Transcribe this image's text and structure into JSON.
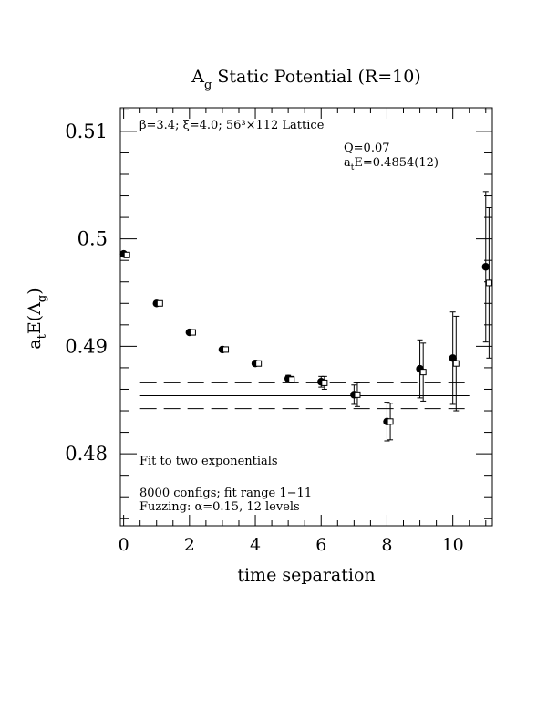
{
  "chart_data": {
    "type": "scatter",
    "title_main": "A",
    "title_sub": "g",
    "title_rest": " Static Potential (R=10)",
    "xlabel": "time separation",
    "ylabel_main": "a",
    "ylabel_sub1": "t",
    "ylabel_mid": "E(A",
    "ylabel_sub2": "g",
    "ylabel_end": ")",
    "xlim": [
      -0.1,
      11.2
    ],
    "ylim": [
      0.4733,
      0.5122
    ],
    "x_ticks": [
      0,
      2,
      4,
      6,
      8,
      10
    ],
    "x_tick_labels": [
      "0",
      "2",
      "4",
      "6",
      "8",
      "10"
    ],
    "y_ticks": [
      0.48,
      0.49,
      0.5,
      0.51
    ],
    "y_tick_labels": [
      "0.48",
      "0.49",
      "0.5",
      "0.51"
    ],
    "x_minor_step": 0.5,
    "y_minor_step": 0.002,
    "annotations": {
      "lattice": "β=3.4; ξ=4.0; 56³×112 Lattice",
      "q_value": "Q=0.07",
      "energy_main": "a",
      "energy_sub": "t",
      "energy_rest": "E=0.4854(12)",
      "fit_title": "Fit to two exponentials",
      "configs": "8000 configs; fit range 1−11",
      "fuzzing": "Fuzzing: α=0.15, 12 levels"
    },
    "fit": {
      "value": 0.4854,
      "upper": 0.4866,
      "lower": 0.4842,
      "x_start": 0.5,
      "x_end": 10.5
    },
    "series": [
      {
        "marker": "filled-circle",
        "x": [
          0,
          1,
          2,
          3,
          4,
          5,
          6,
          7,
          8,
          9,
          10,
          11
        ],
        "y": [
          0.4986,
          0.494,
          0.4913,
          0.4897,
          0.4884,
          0.487,
          0.4867,
          0.4855,
          0.483,
          0.4879,
          0.4889,
          0.4974
        ],
        "err": [
          8e-05,
          0.0001,
          0.00012,
          0.00015,
          0.0002,
          0.0003,
          0.0005,
          0.0009,
          0.0018,
          0.0027,
          0.0043,
          0.007
        ]
      },
      {
        "marker": "open-square",
        "x": [
          0.1,
          1.1,
          2.1,
          3.1,
          4.1,
          5.1,
          6.1,
          7.1,
          8.1,
          9.1,
          10.1,
          11.1
        ],
        "y": [
          0.4985,
          0.494,
          0.4913,
          0.4897,
          0.4884,
          0.4869,
          0.4866,
          0.4855,
          0.483,
          0.4876,
          0.4884,
          0.4959
        ],
        "err": [
          8e-05,
          0.0001,
          0.00012,
          0.00015,
          0.0002,
          0.0003,
          0.0006,
          0.0011,
          0.0017,
          0.0027,
          0.0044,
          0.007
        ]
      }
    ]
  }
}
